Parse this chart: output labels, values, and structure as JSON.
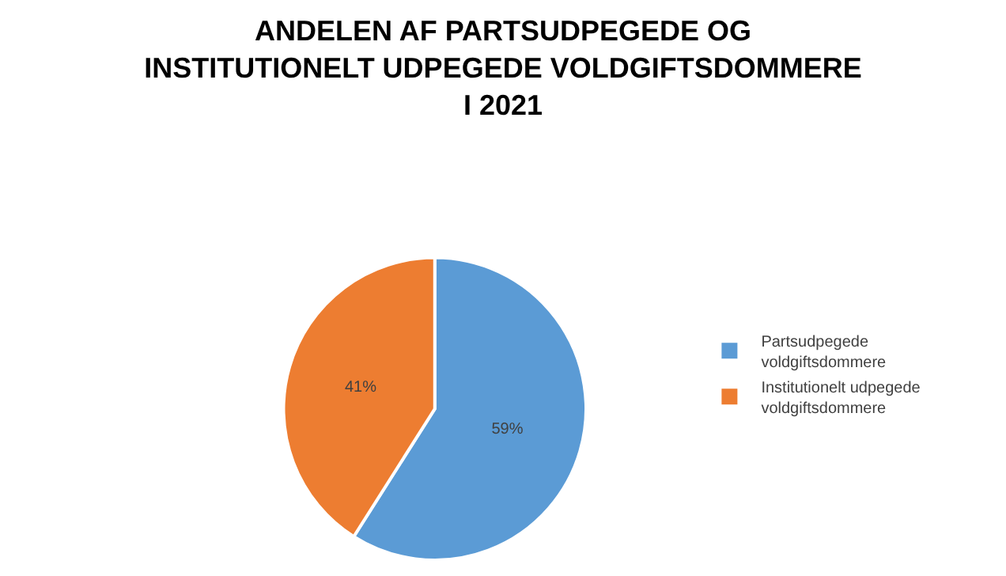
{
  "chart_data": {
    "type": "pie",
    "title": "ANDELEN AF PARTSUDPEGEDE OG\nINSTITUTIONELT UDPEGEDE VOLDGIFTSDOMMERE\nI 2021",
    "categories": [
      "Partsudpegede voldgiftsdommere",
      "Institutionelt udpegede voldgiftsdommere"
    ],
    "values": [
      59,
      41
    ],
    "colors": [
      "#5b9bd5",
      "#ed7d31"
    ],
    "value_labels": [
      "59%",
      "41%"
    ],
    "legend": "right"
  }
}
